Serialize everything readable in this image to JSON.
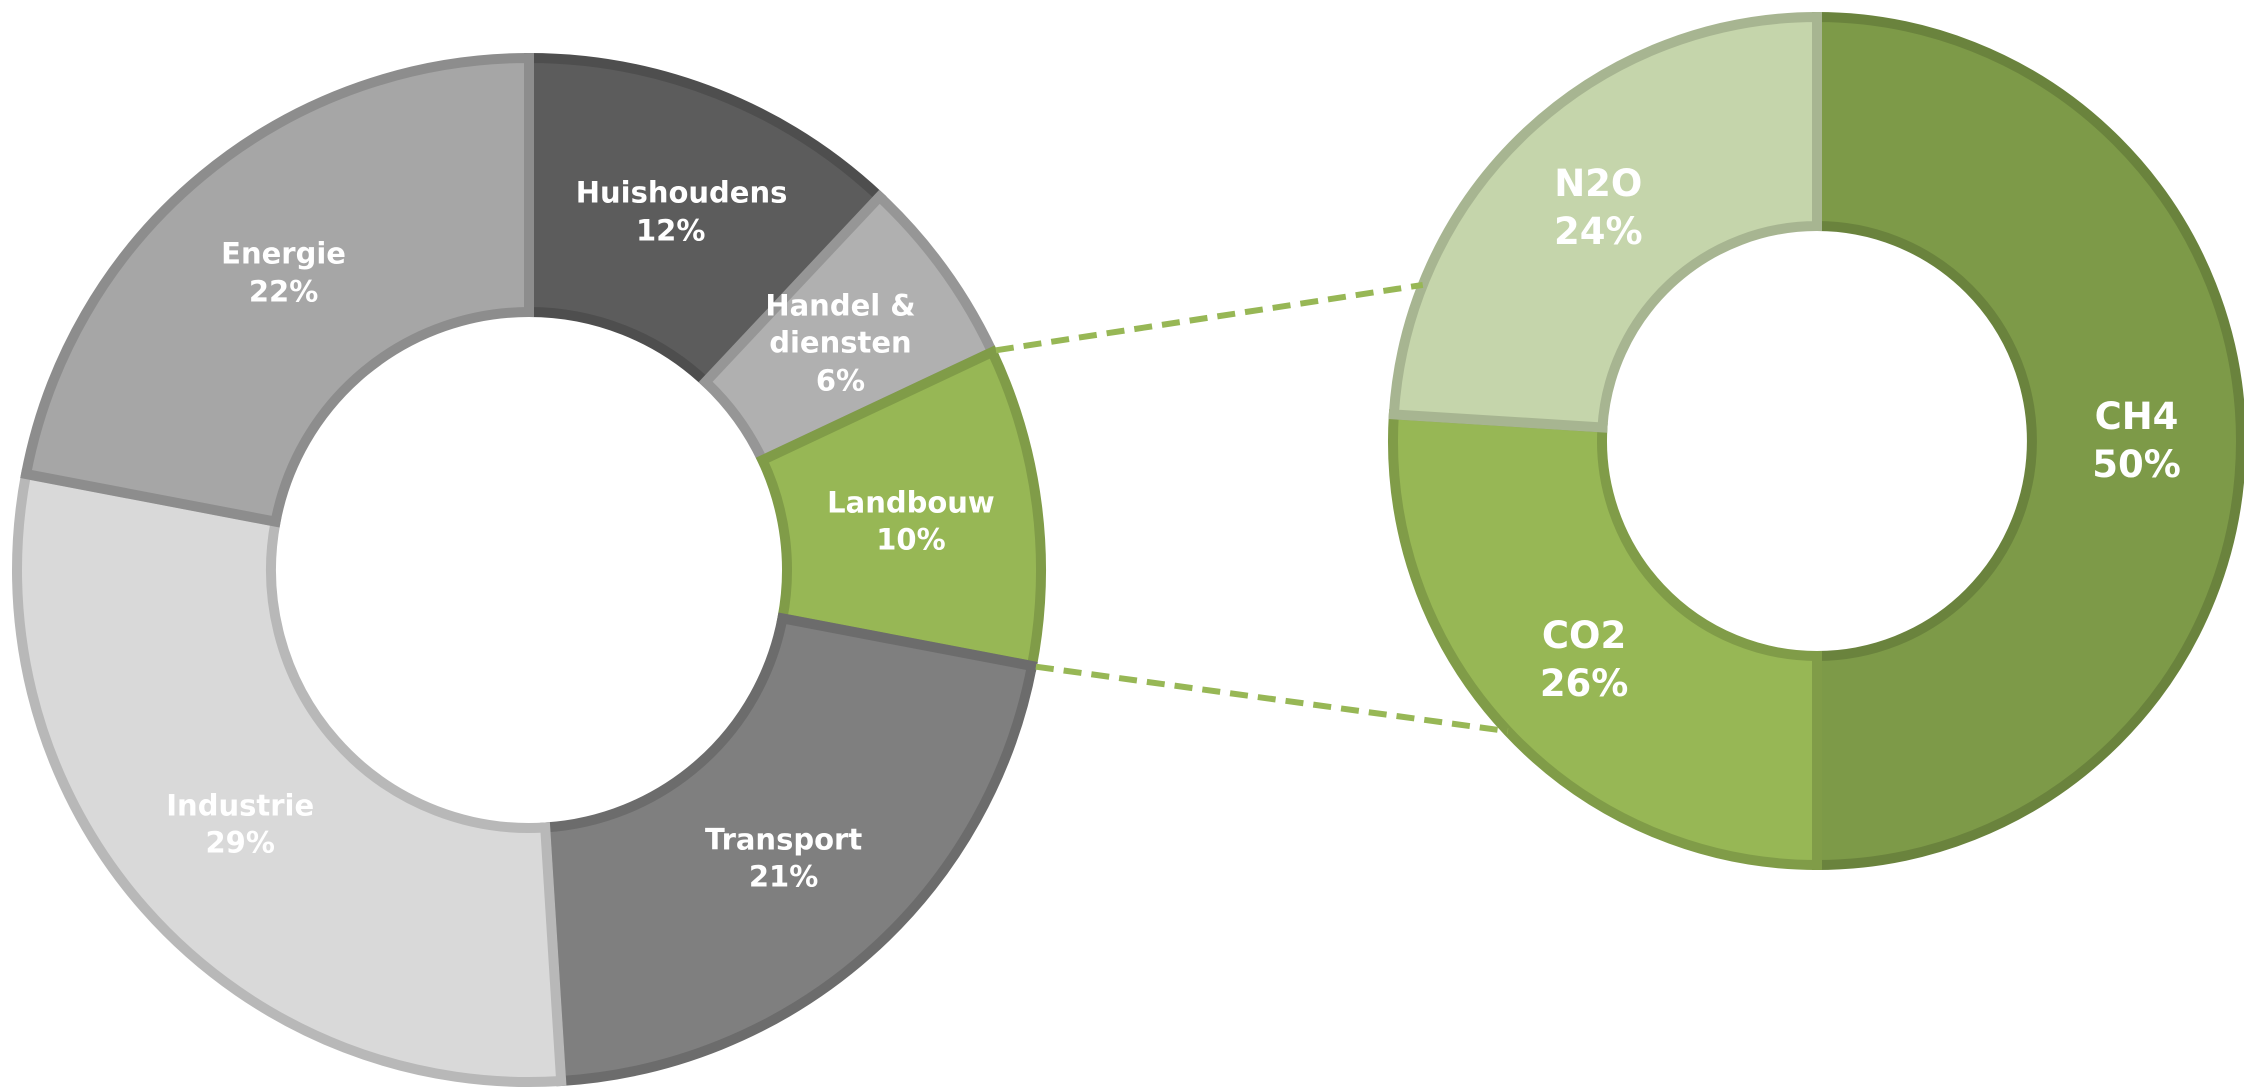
{
  "chart_data": [
    {
      "type": "donut",
      "categories": [
        "Huishoudens",
        "Handel & diensten",
        "Landbouw",
        "Transport",
        "Industrie",
        "Energie"
      ],
      "values": [
        12,
        6,
        10,
        21,
        29,
        22
      ],
      "value_labels": [
        "12%",
        "6%",
        "10%",
        "21%",
        "29%",
        "22%"
      ],
      "colors": [
        "#5c5c5c",
        "#b0b0b0",
        "#97b755",
        "#7f7f7f",
        "#d9d9d9",
        "#a6a6a6"
      ]
    },
    {
      "type": "donut",
      "categories": [
        "CH4",
        "CO2",
        "N2O"
      ],
      "values": [
        50,
        26,
        24
      ],
      "value_labels": [
        "50%",
        "26%",
        "24%"
      ],
      "colors": [
        "#7d9a48",
        "#97b755",
        "#c5d5ab"
      ]
    }
  ]
}
